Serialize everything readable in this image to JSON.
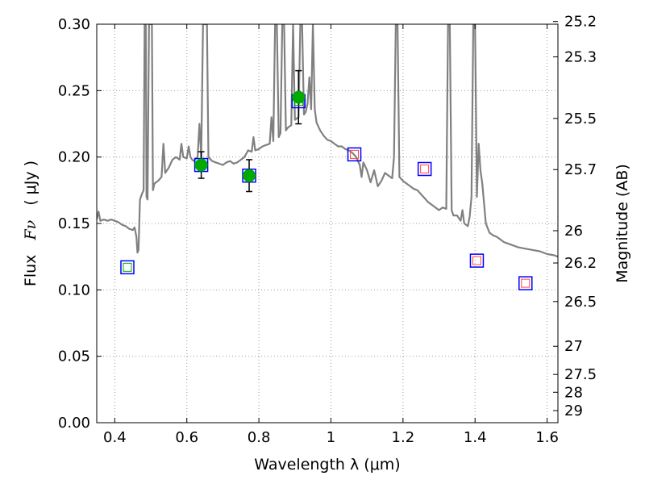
{
  "chart_data": {
    "type": "line",
    "xlabel": "Wavelength  λ (μm)",
    "ylabel_text": "Flux",
    "ylabel_symbol": "Fν",
    "ylabel_unit": "( μJy )",
    "y2label": "Magnitude (AB)",
    "xlim": [
      0.35,
      1.63
    ],
    "ylim": [
      0.0,
      0.3
    ],
    "grid": true,
    "x_ticks": [
      0.4,
      0.6,
      0.8,
      1.0,
      1.2,
      1.4,
      1.6
    ],
    "x_tick_labels": [
      "0.4",
      "0.6",
      "0.8",
      "1",
      "1.2",
      "1.4",
      "1.6"
    ],
    "y_ticks": [
      0.0,
      0.05,
      0.1,
      0.15,
      0.2,
      0.25,
      0.3
    ],
    "y_tick_labels": [
      "0.00",
      "0.05",
      "0.10",
      "0.15",
      "0.20",
      "0.25",
      "0.30"
    ],
    "magnitude_ticks": [
      "25.2",
      "25.3",
      "25.5",
      "25.7",
      "26",
      "26.2",
      "26.5",
      "27",
      "27.5",
      "28",
      "29"
    ],
    "colors": {
      "template": "#808080",
      "observed": "#00aa00",
      "model_box": "#0000ff",
      "inner_green": "#00aa00",
      "inner_red": "#ff4444",
      "errorbar": "#000000",
      "grid": "#999999"
    },
    "template_spectrum": {
      "name": "",
      "points": [
        [
          0.35,
          0.153
        ],
        [
          0.355,
          0.159
        ],
        [
          0.36,
          0.152
        ],
        [
          0.37,
          0.153
        ],
        [
          0.38,
          0.152
        ],
        [
          0.39,
          0.153
        ],
        [
          0.4,
          0.152
        ],
        [
          0.41,
          0.151
        ],
        [
          0.42,
          0.149
        ],
        [
          0.43,
          0.148
        ],
        [
          0.44,
          0.146
        ],
        [
          0.45,
          0.145
        ],
        [
          0.455,
          0.147
        ],
        [
          0.46,
          0.14
        ],
        [
          0.463,
          0.128
        ],
        [
          0.466,
          0.13
        ],
        [
          0.47,
          0.168
        ],
        [
          0.475,
          0.172
        ],
        [
          0.48,
          0.175
        ],
        [
          0.483,
          0.3
        ],
        [
          0.486,
          0.3
        ],
        [
          0.488,
          0.17
        ],
        [
          0.491,
          0.168
        ],
        [
          0.495,
          0.3
        ],
        [
          0.499,
          0.3
        ],
        [
          0.503,
          0.3
        ],
        [
          0.506,
          0.175
        ],
        [
          0.51,
          0.18
        ],
        [
          0.52,
          0.182
        ],
        [
          0.53,
          0.185
        ],
        [
          0.535,
          0.21
        ],
        [
          0.54,
          0.188
        ],
        [
          0.55,
          0.192
        ],
        [
          0.56,
          0.198
        ],
        [
          0.57,
          0.2
        ],
        [
          0.58,
          0.198
        ],
        [
          0.585,
          0.21
        ],
        [
          0.59,
          0.2
        ],
        [
          0.6,
          0.199
        ],
        [
          0.605,
          0.208
        ],
        [
          0.61,
          0.2
        ],
        [
          0.615,
          0.198
        ],
        [
          0.62,
          0.197
        ],
        [
          0.625,
          0.199
        ],
        [
          0.63,
          0.2
        ],
        [
          0.635,
          0.225
        ],
        [
          0.64,
          0.2
        ],
        [
          0.645,
          0.3
        ],
        [
          0.648,
          0.3
        ],
        [
          0.652,
          0.3
        ],
        [
          0.656,
          0.3
        ],
        [
          0.66,
          0.2
        ],
        [
          0.67,
          0.197
        ],
        [
          0.68,
          0.196
        ],
        [
          0.69,
          0.195
        ],
        [
          0.7,
          0.194
        ],
        [
          0.71,
          0.196
        ],
        [
          0.72,
          0.197
        ],
        [
          0.73,
          0.195
        ],
        [
          0.74,
          0.196
        ],
        [
          0.75,
          0.198
        ],
        [
          0.76,
          0.2
        ],
        [
          0.77,
          0.205
        ],
        [
          0.78,
          0.204
        ],
        [
          0.785,
          0.215
        ],
        [
          0.79,
          0.205
        ],
        [
          0.8,
          0.206
        ],
        [
          0.81,
          0.208
        ],
        [
          0.82,
          0.209
        ],
        [
          0.83,
          0.21
        ],
        [
          0.835,
          0.23
        ],
        [
          0.84,
          0.212
        ],
        [
          0.845,
          0.3
        ],
        [
          0.85,
          0.3
        ],
        [
          0.855,
          0.215
        ],
        [
          0.86,
          0.218
        ],
        [
          0.865,
          0.3
        ],
        [
          0.87,
          0.3
        ],
        [
          0.875,
          0.22
        ],
        [
          0.88,
          0.222
        ],
        [
          0.89,
          0.224
        ],
        [
          0.895,
          0.3
        ],
        [
          0.9,
          0.228
        ],
        [
          0.91,
          0.23
        ],
        [
          0.915,
          0.3
        ],
        [
          0.92,
          0.3
        ],
        [
          0.925,
          0.232
        ],
        [
          0.93,
          0.234
        ],
        [
          0.935,
          0.24
        ],
        [
          0.94,
          0.26
        ],
        [
          0.945,
          0.236
        ],
        [
          0.95,
          0.3
        ],
        [
          0.955,
          0.236
        ],
        [
          0.96,
          0.226
        ],
        [
          0.97,
          0.22
        ],
        [
          0.98,
          0.216
        ],
        [
          0.99,
          0.213
        ],
        [
          1.0,
          0.212
        ],
        [
          1.01,
          0.21
        ],
        [
          1.02,
          0.208
        ],
        [
          1.03,
          0.208
        ],
        [
          1.04,
          0.206
        ],
        [
          1.05,
          0.205
        ],
        [
          1.06,
          0.203
        ],
        [
          1.07,
          0.2
        ],
        [
          1.08,
          0.194
        ],
        [
          1.085,
          0.185
        ],
        [
          1.09,
          0.196
        ],
        [
          1.1,
          0.19
        ],
        [
          1.11,
          0.181
        ],
        [
          1.12,
          0.19
        ],
        [
          1.13,
          0.178
        ],
        [
          1.14,
          0.182
        ],
        [
          1.15,
          0.188
        ],
        [
          1.16,
          0.186
        ],
        [
          1.17,
          0.184
        ],
        [
          1.175,
          0.2
        ],
        [
          1.18,
          0.3
        ],
        [
          1.185,
          0.3
        ],
        [
          1.19,
          0.185
        ],
        [
          1.2,
          0.182
        ],
        [
          1.21,
          0.18
        ],
        [
          1.22,
          0.178
        ],
        [
          1.23,
          0.176
        ],
        [
          1.24,
          0.175
        ],
        [
          1.25,
          0.172
        ],
        [
          1.26,
          0.169
        ],
        [
          1.27,
          0.166
        ],
        [
          1.28,
          0.164
        ],
        [
          1.29,
          0.162
        ],
        [
          1.3,
          0.16
        ],
        [
          1.31,
          0.162
        ],
        [
          1.32,
          0.161
        ],
        [
          1.325,
          0.3
        ],
        [
          1.33,
          0.3
        ],
        [
          1.335,
          0.16
        ],
        [
          1.34,
          0.156
        ],
        [
          1.35,
          0.156
        ],
        [
          1.36,
          0.152
        ],
        [
          1.365,
          0.16
        ],
        [
          1.37,
          0.15
        ],
        [
          1.38,
          0.148
        ],
        [
          1.385,
          0.155
        ],
        [
          1.39,
          0.17
        ],
        [
          1.395,
          0.3
        ],
        [
          1.4,
          0.3
        ],
        [
          1.405,
          0.17
        ],
        [
          1.41,
          0.21
        ],
        [
          1.415,
          0.19
        ],
        [
          1.42,
          0.18
        ],
        [
          1.43,
          0.15
        ],
        [
          1.44,
          0.143
        ],
        [
          1.45,
          0.141
        ],
        [
          1.46,
          0.14
        ],
        [
          1.47,
          0.138
        ],
        [
          1.48,
          0.136
        ],
        [
          1.5,
          0.134
        ],
        [
          1.52,
          0.132
        ],
        [
          1.54,
          0.131
        ],
        [
          1.56,
          0.13
        ],
        [
          1.58,
          0.129
        ],
        [
          1.6,
          0.127
        ],
        [
          1.62,
          0.126
        ],
        [
          1.63,
          0.125
        ]
      ]
    },
    "observed_points": {
      "name": "",
      "points": [
        {
          "x": 0.64,
          "y": 0.194,
          "yerr": 0.01
        },
        {
          "x": 0.773,
          "y": 0.186,
          "yerr": 0.012
        },
        {
          "x": 0.91,
          "y": 0.245,
          "yerr": 0.02
        }
      ]
    },
    "model_boxes": {
      "name": "",
      "points": [
        {
          "x": 0.435,
          "y": 0.117,
          "inner": "green"
        },
        {
          "x": 0.64,
          "y": 0.194,
          "inner": "green"
        },
        {
          "x": 0.773,
          "y": 0.186,
          "inner": "green"
        },
        {
          "x": 0.91,
          "y": 0.242,
          "inner": "green"
        },
        {
          "x": 1.065,
          "y": 0.202,
          "inner": "red"
        },
        {
          "x": 1.26,
          "y": 0.191,
          "inner": "red"
        },
        {
          "x": 1.405,
          "y": 0.122,
          "inner": "red"
        },
        {
          "x": 1.54,
          "y": 0.105,
          "inner": "red"
        }
      ]
    }
  }
}
